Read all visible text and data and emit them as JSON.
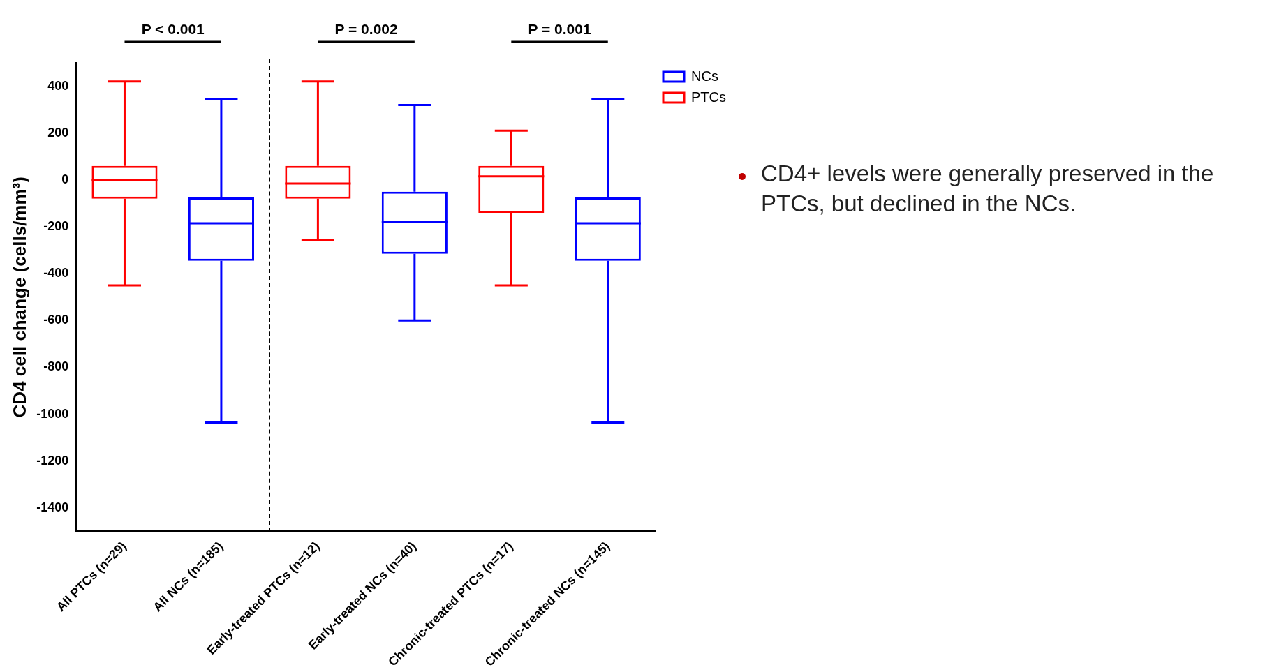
{
  "chart_data": {
    "type": "box",
    "ylabel": "CD4 cell change (cells/mm³)",
    "categories": [
      "All PTCs (n=29)",
      "All NCs (n=185)",
      "Early-treated PTCs (n=12)",
      "Early-treated NCs (n=40)",
      "Chronic-treated PTCs (n=17)",
      "Chronic-treated NCs (n=145)"
    ],
    "series": [
      {
        "name": "NCs",
        "color": "#0000ff",
        "boxes": [
          null,
          {
            "low": -1035,
            "q1": -345,
            "median": -185,
            "q3": -75,
            "high": 345
          },
          null,
          {
            "low": -600,
            "q1": -315,
            "median": -180,
            "q3": -50,
            "high": 320
          },
          null,
          {
            "low": -1035,
            "q1": -345,
            "median": -185,
            "q3": -75,
            "high": 345
          }
        ]
      },
      {
        "name": "PTCs",
        "color": "#ff0000",
        "boxes": [
          {
            "low": -450,
            "q1": -80,
            "median": 0,
            "q3": 60,
            "high": 420
          },
          null,
          {
            "low": -255,
            "q1": -80,
            "median": -15,
            "q3": 60,
            "high": 420
          },
          null,
          {
            "low": -450,
            "q1": -140,
            "median": 15,
            "q3": 60,
            "high": 210
          },
          null
        ]
      }
    ],
    "ylim": [
      -1500,
      500
    ],
    "yticks": [
      400,
      200,
      0,
      -200,
      -400,
      -600,
      -800,
      -1000,
      -1200,
      -1400
    ],
    "grid": false,
    "legend": "top right",
    "annotations": [
      "P < 0.001",
      "P = 0.002",
      "P = 0.001",
      "CD4+ levels were generally preserved in the PTCs, but declined in the NCs."
    ]
  }
}
